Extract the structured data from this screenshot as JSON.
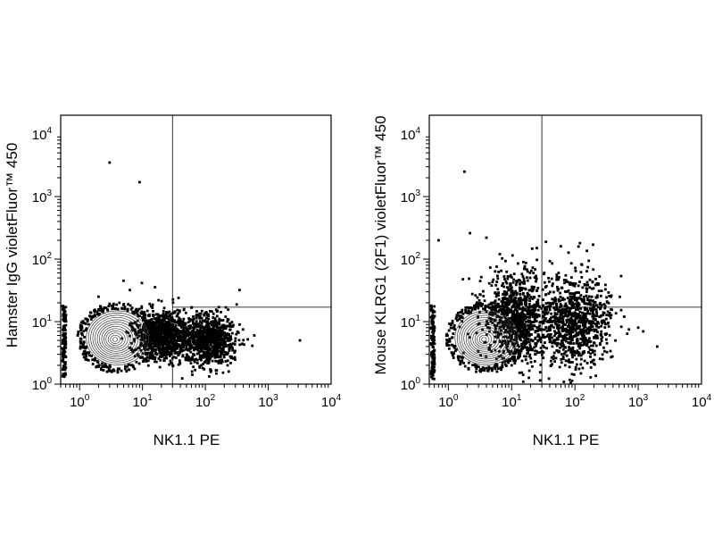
{
  "chart_data": [
    {
      "type": "scatter",
      "subtype": "flow-cytometry-contour-dot-plot",
      "title": "",
      "xlabel": "NK1.1 PE",
      "ylabel": "Hamster IgG violetFluor™ 450",
      "x_scale": "log",
      "y_scale": "log",
      "xlim": [
        0.5,
        10000
      ],
      "ylim": [
        1,
        20000
      ],
      "x_ticks": [
        {
          "base": "10",
          "exp": "0",
          "value": 1
        },
        {
          "base": "10",
          "exp": "1",
          "value": 10
        },
        {
          "base": "10",
          "exp": "2",
          "value": 100
        },
        {
          "base": "10",
          "exp": "3",
          "value": 1000
        },
        {
          "base": "10",
          "exp": "4",
          "value": 10000
        }
      ],
      "y_ticks": [
        {
          "base": "10",
          "exp": "0",
          "value": 1
        },
        {
          "base": "10",
          "exp": "1",
          "value": 10
        },
        {
          "base": "10",
          "exp": "2",
          "value": 100
        },
        {
          "base": "10",
          "exp": "3",
          "value": 1000
        },
        {
          "base": "10",
          "exp": "4",
          "value": 10000
        }
      ],
      "quadrant_gate": {
        "x": 30,
        "y": 17
      },
      "populations": [
        {
          "kind": "contour",
          "center": [
            4,
            5.5
          ],
          "spread": [
            0.32,
            0.32
          ]
        },
        {
          "kind": "dots",
          "center": [
            20,
            6
          ],
          "spread": [
            0.2,
            0.2
          ]
        },
        {
          "kind": "dots",
          "center": [
            110,
            5
          ],
          "spread": [
            0.22,
            0.2
          ]
        }
      ],
      "sparse_events": [
        [
          3,
          3500
        ],
        [
          9,
          1700
        ],
        [
          6.3,
          32
        ],
        [
          2,
          25
        ],
        [
          5,
          45
        ],
        [
          18,
          22
        ],
        [
          350,
          32
        ],
        [
          3200,
          5
        ],
        [
          0.55,
          16
        ],
        [
          1.5,
          12
        ],
        [
          250,
          9
        ],
        [
          600,
          6
        ]
      ]
    },
    {
      "type": "scatter",
      "subtype": "flow-cytometry-contour-dot-plot",
      "title": "",
      "xlabel": "NK1.1 PE",
      "ylabel": "Mouse KLRG1 (2F1) violetFluor™ 450",
      "x_scale": "log",
      "y_scale": "log",
      "xlim": [
        0.5,
        10000
      ],
      "ylim": [
        1,
        20000
      ],
      "x_ticks": [
        {
          "base": "10",
          "exp": "0",
          "value": 1
        },
        {
          "base": "10",
          "exp": "1",
          "value": 10
        },
        {
          "base": "10",
          "exp": "2",
          "value": 100
        },
        {
          "base": "10",
          "exp": "3",
          "value": 1000
        },
        {
          "base": "10",
          "exp": "4",
          "value": 10000
        }
      ],
      "y_ticks": [
        {
          "base": "10",
          "exp": "0",
          "value": 1
        },
        {
          "base": "10",
          "exp": "1",
          "value": 10
        },
        {
          "base": "10",
          "exp": "2",
          "value": 100
        },
        {
          "base": "10",
          "exp": "3",
          "value": 1000
        },
        {
          "base": "10",
          "exp": "4",
          "value": 10000
        }
      ],
      "quadrant_gate": {
        "x": 30,
        "y": 17
      },
      "populations": [
        {
          "kind": "contour",
          "center": [
            4,
            5.5
          ],
          "spread": [
            0.32,
            0.32
          ]
        },
        {
          "kind": "dots",
          "center": [
            12,
            12
          ],
          "spread": [
            0.28,
            0.35
          ]
        },
        {
          "kind": "dots",
          "center": [
            100,
            10
          ],
          "spread": [
            0.28,
            0.35
          ]
        }
      ],
      "sparse_events": [
        [
          1.8,
          2500
        ],
        [
          6.5,
          120
        ],
        [
          2.2,
          260
        ],
        [
          4,
          220
        ],
        [
          120,
          180
        ],
        [
          60,
          160
        ],
        [
          1000,
          8
        ],
        [
          2000,
          4
        ],
        [
          600,
          12
        ],
        [
          1200,
          7
        ],
        [
          25,
          150
        ],
        [
          0.7,
          200
        ]
      ]
    }
  ]
}
